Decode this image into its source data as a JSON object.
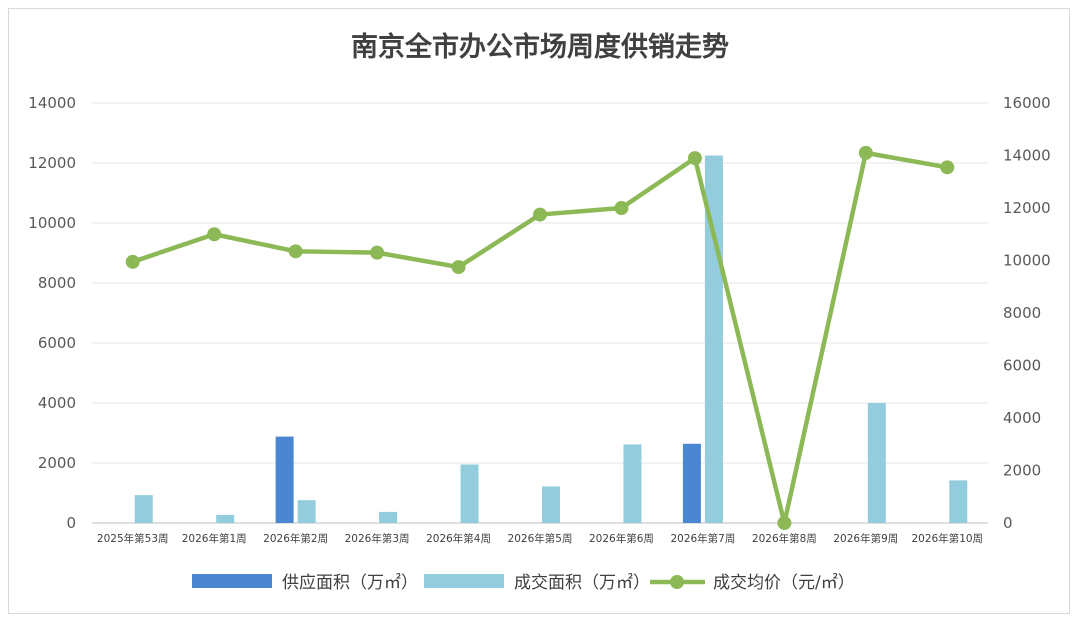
{
  "chart_data": {
    "type": "bar",
    "title": "南京全市办公市场周度供销走势",
    "categories": [
      "2025年第53周",
      "2026年第1周",
      "2026年第2周",
      "2026年第3周",
      "2026年第4周",
      "2026年第5周",
      "2026年第6周",
      "2026年第7周",
      "2026年第8周",
      "2026年第9周",
      "2026年第10周"
    ],
    "series": [
      {
        "name": "供应面积（万㎡）",
        "type": "bar",
        "axis": "left",
        "color": "#4a86d1",
        "values": [
          0,
          0,
          2880,
          0,
          0,
          0,
          0,
          2640,
          0,
          0,
          0
        ]
      },
      {
        "name": "成交面积（万㎡）",
        "type": "bar",
        "axis": "left",
        "color": "#93cddd",
        "values": [
          930,
          270,
          760,
          370,
          1950,
          1220,
          2620,
          12250,
          0,
          4000,
          1420
        ]
      },
      {
        "name": "成交均价（元/㎡）",
        "type": "line",
        "axis": "right",
        "color": "#8cb955",
        "values": [
          9950,
          11000,
          10350,
          10300,
          9750,
          11750,
          12000,
          13900,
          0,
          14100,
          13550
        ]
      }
    ],
    "y_left": {
      "min": 0,
      "max": 14000,
      "ticks": [
        0,
        2000,
        4000,
        6000,
        8000,
        10000,
        12000,
        14000
      ]
    },
    "y_right": {
      "min": 0,
      "max": 16000,
      "ticks": [
        0,
        2000,
        4000,
        6000,
        8000,
        10000,
        12000,
        14000,
        16000
      ]
    },
    "grid": true,
    "legend_position": "bottom"
  }
}
